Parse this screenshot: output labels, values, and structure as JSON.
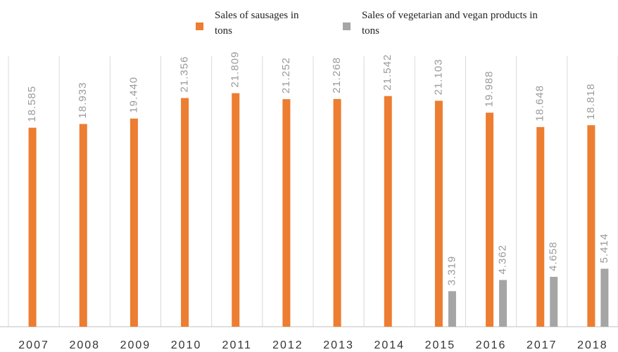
{
  "chart_data": {
    "type": "bar",
    "categories": [
      "2007",
      "2008",
      "2009",
      "2010",
      "2011",
      "2012",
      "2013",
      "2014",
      "2015",
      "2016",
      "2017",
      "2018"
    ],
    "series": [
      {
        "name": "Sales of sausages in tons",
        "color": "#ed7d31",
        "values": [
          18.585,
          18.933,
          19.44,
          21.356,
          21.809,
          21.252,
          21.268,
          21.542,
          21.103,
          19.988,
          18.648,
          18.818
        ],
        "value_labels": [
          "18.585",
          "18.933",
          "19.440",
          "21.356",
          "21.809",
          "21.252",
          "21.268",
          "21.542",
          "21.103",
          "19.988",
          "18.648",
          "18.818"
        ]
      },
      {
        "name": "Sales of vegetarian and vegan products in tons",
        "color": "#a5a5a5",
        "values": [
          null,
          null,
          null,
          null,
          null,
          null,
          null,
          null,
          3.319,
          4.362,
          4.658,
          5.414
        ],
        "value_labels": [
          null,
          null,
          null,
          null,
          null,
          null,
          null,
          null,
          "3.319",
          "4.362",
          "4.658",
          "5.414"
        ]
      }
    ],
    "ylim": [
      0,
      25
    ],
    "legend": "top"
  }
}
